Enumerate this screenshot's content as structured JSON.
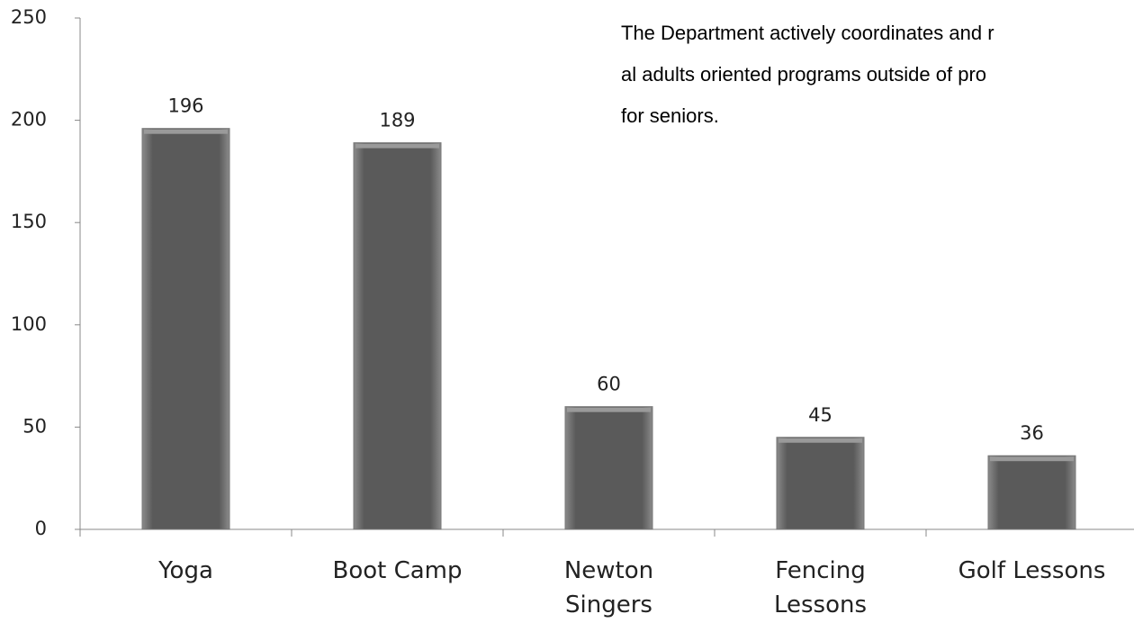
{
  "chart_data": {
    "type": "bar",
    "annotation": [
      "The Department actively coordinates and r",
      "al adults oriented programs outside of pro",
      "for seniors."
    ],
    "categories": [
      "Yoga",
      "Boot Camp",
      "Newton\nSingers",
      "Fencing\nLessons",
      "Golf Lessons"
    ],
    "values": [
      196,
      189,
      60,
      45,
      36
    ],
    "color": "#5a5a5a",
    "ylim": [
      0,
      250
    ],
    "yticks": [
      0,
      50,
      100,
      150,
      200,
      250
    ],
    "grid": false
  }
}
